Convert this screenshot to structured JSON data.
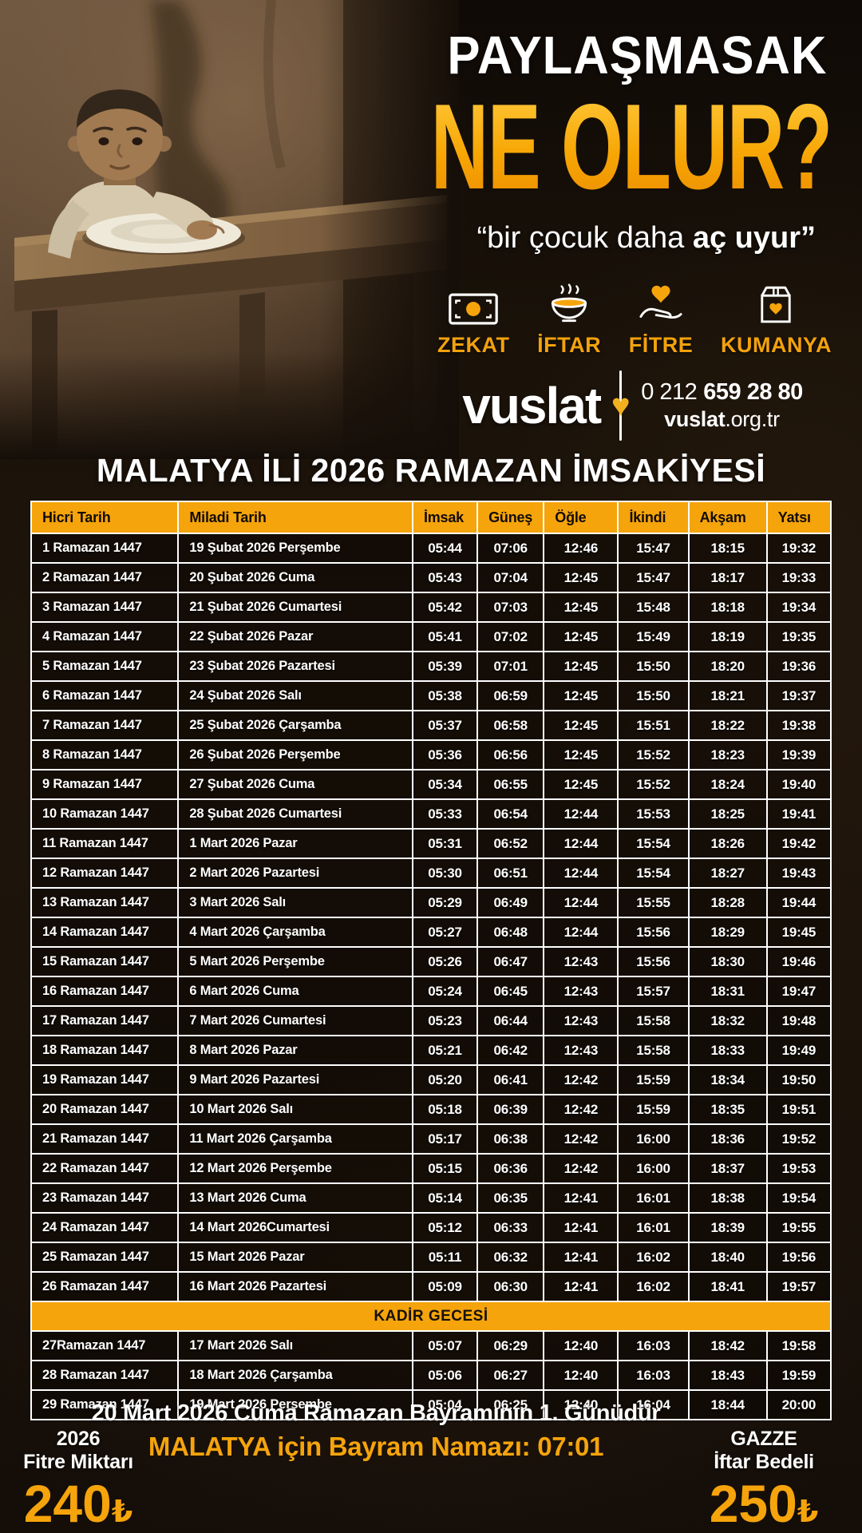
{
  "hero": {
    "headline_line1": "PAYLAŞMASAK",
    "headline_line2": "NE OLUR?",
    "subline_prefix": "“bir çocuk daha ",
    "subline_bold": "aç uyur”"
  },
  "services": [
    {
      "label": "ZEKAT",
      "icon": "banknote-icon"
    },
    {
      "label": "İFTAR",
      "icon": "soup-bowl-icon"
    },
    {
      "label": "FİTRE",
      "icon": "hand-heart-icon"
    },
    {
      "label": "KUMANYA",
      "icon": "aid-box-icon"
    }
  ],
  "brand": {
    "logo_text": "vuslat",
    "phone_prefix": "0 212",
    "phone_number": "659 28 80",
    "website_bold": "vuslat",
    "website_rest": ".org.tr"
  },
  "title": "MALATYA İLİ 2026 RAMAZAN İMSAKİYESİ",
  "table": {
    "headers": [
      "Hicri Tarih",
      "Miladi Tarih",
      "İmsak",
      "Güneş",
      "Öğle",
      "İkindi",
      "Akşam",
      "Yatsı"
    ],
    "rows_before_kadir": [
      [
        "1 Ramazan 1447",
        "19 Şubat 2026 Perşembe",
        "05:44",
        "07:06",
        "12:46",
        "15:47",
        "18:15",
        "19:32"
      ],
      [
        "2 Ramazan 1447",
        "20 Şubat 2026 Cuma",
        "05:43",
        "07:04",
        "12:45",
        "15:47",
        "18:17",
        "19:33"
      ],
      [
        "3 Ramazan 1447",
        "21 Şubat 2026 Cumartesi",
        "05:42",
        "07:03",
        "12:45",
        "15:48",
        "18:18",
        "19:34"
      ],
      [
        "4 Ramazan 1447",
        "22 Şubat 2026 Pazar",
        "05:41",
        "07:02",
        "12:45",
        "15:49",
        "18:19",
        "19:35"
      ],
      [
        "5 Ramazan 1447",
        "23 Şubat 2026 Pazartesi",
        "05:39",
        "07:01",
        "12:45",
        "15:50",
        "18:20",
        "19:36"
      ],
      [
        "6 Ramazan 1447",
        "24 Şubat 2026 Salı",
        "05:38",
        "06:59",
        "12:45",
        "15:50",
        "18:21",
        "19:37"
      ],
      [
        "7 Ramazan 1447",
        "25 Şubat 2026 Çarşamba",
        "05:37",
        "06:58",
        "12:45",
        "15:51",
        "18:22",
        "19:38"
      ],
      [
        "8 Ramazan 1447",
        "26 Şubat 2026 Perşembe",
        "05:36",
        "06:56",
        "12:45",
        "15:52",
        "18:23",
        "19:39"
      ],
      [
        "9 Ramazan 1447",
        "27 Şubat 2026 Cuma",
        "05:34",
        "06:55",
        "12:45",
        "15:52",
        "18:24",
        "19:40"
      ],
      [
        "10 Ramazan 1447",
        "28 Şubat 2026 Cumartesi",
        "05:33",
        "06:54",
        "12:44",
        "15:53",
        "18:25",
        "19:41"
      ],
      [
        "11 Ramazan 1447",
        "1 Mart 2026 Pazar",
        "05:31",
        "06:52",
        "12:44",
        "15:54",
        "18:26",
        "19:42"
      ],
      [
        "12 Ramazan 1447",
        "2 Mart 2026 Pazartesi",
        "05:30",
        "06:51",
        "12:44",
        "15:54",
        "18:27",
        "19:43"
      ],
      [
        "13 Ramazan 1447",
        "3 Mart 2026 Salı",
        "05:29",
        "06:49",
        "12:44",
        "15:55",
        "18:28",
        "19:44"
      ],
      [
        "14 Ramazan 1447",
        "4 Mart 2026 Çarşamba",
        "05:27",
        "06:48",
        "12:44",
        "15:56",
        "18:29",
        "19:45"
      ],
      [
        "15 Ramazan 1447",
        "5 Mart 2026 Perşembe",
        "05:26",
        "06:47",
        "12:43",
        "15:56",
        "18:30",
        "19:46"
      ],
      [
        "16 Ramazan 1447",
        "6 Mart 2026 Cuma",
        "05:24",
        "06:45",
        "12:43",
        "15:57",
        "18:31",
        "19:47"
      ],
      [
        "17 Ramazan 1447",
        "7 Mart 2026 Cumartesi",
        "05:23",
        "06:44",
        "12:43",
        "15:58",
        "18:32",
        "19:48"
      ],
      [
        "18 Ramazan 1447",
        "8 Mart 2026 Pazar",
        "05:21",
        "06:42",
        "12:43",
        "15:58",
        "18:33",
        "19:49"
      ],
      [
        "19 Ramazan 1447",
        "9 Mart 2026 Pazartesi",
        "05:20",
        "06:41",
        "12:42",
        "15:59",
        "18:34",
        "19:50"
      ],
      [
        "20 Ramazan 1447",
        "10 Mart 2026 Salı",
        "05:18",
        "06:39",
        "12:42",
        "15:59",
        "18:35",
        "19:51"
      ],
      [
        "21 Ramazan 1447",
        "11 Mart 2026 Çarşamba",
        "05:17",
        "06:38",
        "12:42",
        "16:00",
        "18:36",
        "19:52"
      ],
      [
        "22 Ramazan 1447",
        "12 Mart 2026 Perşembe",
        "05:15",
        "06:36",
        "12:42",
        "16:00",
        "18:37",
        "19:53"
      ],
      [
        "23 Ramazan 1447",
        "13 Mart 2026 Cuma",
        "05:14",
        "06:35",
        "12:41",
        "16:01",
        "18:38",
        "19:54"
      ],
      [
        "24 Ramazan 1447",
        "14 Mart 2026Cumartesi",
        "05:12",
        "06:33",
        "12:41",
        "16:01",
        "18:39",
        "19:55"
      ],
      [
        "25 Ramazan 1447",
        "15 Mart 2026 Pazar",
        "05:11",
        "06:32",
        "12:41",
        "16:02",
        "18:40",
        "19:56"
      ],
      [
        "26 Ramazan 1447",
        "16 Mart 2026 Pazartesi",
        "05:09",
        "06:30",
        "12:41",
        "16:02",
        "18:41",
        "19:57"
      ]
    ],
    "kadir_label": "KADİR GECESİ",
    "rows_after_kadir": [
      [
        "27Ramazan 1447",
        "17 Mart 2026  Salı",
        "05:07",
        "06:29",
        "12:40",
        "16:03",
        "18:42",
        "19:58"
      ],
      [
        "28 Ramazan 1447",
        "18 Mart 2026  Çarşamba",
        "05:06",
        "06:27",
        "12:40",
        "16:03",
        "18:43",
        "19:59"
      ],
      [
        "29 Ramazan 1447",
        "19 Mart 2026  Perşembe",
        "05:04",
        "06:25",
        "12:40",
        "16:04",
        "18:44",
        "20:00"
      ]
    ]
  },
  "footer": {
    "bayram_line1": "20 Mart 2026 Cuma Ramazan Bayramının 1. Günüdür",
    "bayram_line2": "MALATYA için Bayram Namazı: 07:01",
    "fitre": {
      "year": "2026",
      "label": "Fitre Miktarı",
      "amount": "240",
      "currency": "₺"
    },
    "gazze": {
      "line1": "GAZZE",
      "line2": "İftar Bedeli",
      "amount": "250",
      "currency": "₺"
    }
  },
  "colors": {
    "accent": "#F5A40B",
    "text": "#FFFFFF",
    "header_text": "#120C06",
    "background": "#17100A"
  }
}
